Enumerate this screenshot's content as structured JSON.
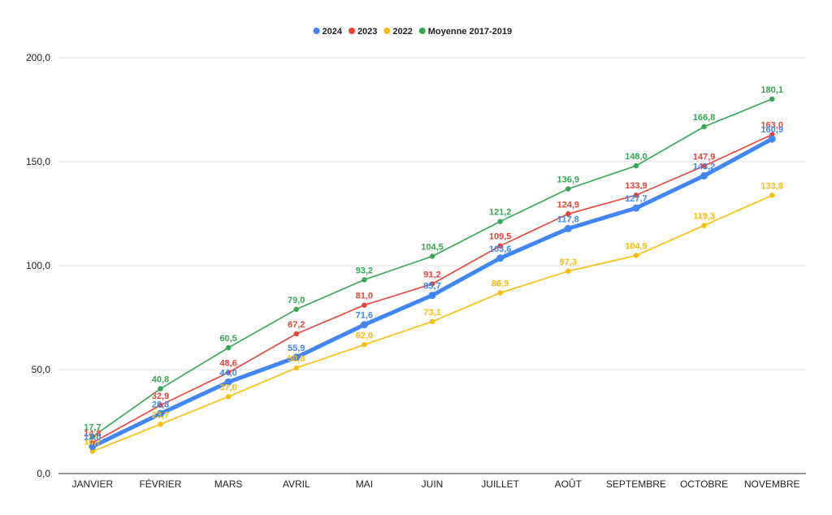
{
  "chart_data": {
    "type": "line",
    "title": "",
    "xlabel": "",
    "ylabel": "",
    "categories": [
      "JANVIER",
      "FÉVRIER",
      "MARS",
      "AVRIL",
      "MAI",
      "JUIN",
      "JUILLET",
      "AOÛT",
      "SEPTEMBRE",
      "OCTOBRE",
      "NOVEMBRE"
    ],
    "ylim": [
      0,
      200
    ],
    "yticks": [
      0,
      50,
      100,
      150,
      200
    ],
    "ytick_labels": [
      "0,0",
      "50,0",
      "100,0",
      "150,0",
      "200,0"
    ],
    "grid": true,
    "legend_position": "top-center",
    "series": [
      {
        "name": "Moyenne 2017-2019",
        "color": "#34a853",
        "values": [
          17.7,
          40.8,
          60.5,
          79.0,
          93.2,
          104.5,
          121.2,
          136.9,
          148.0,
          166.8,
          180.1
        ],
        "labels": [
          "17,7",
          "40,8",
          "60,5",
          "79,0",
          "93,2",
          "104,5",
          "121,2",
          "136,9",
          "148,0",
          "166,8",
          "180,1"
        ]
      },
      {
        "name": "2023",
        "color": "#ea4335",
        "values": [
          14.8,
          32.9,
          48.6,
          67.2,
          81.0,
          91.2,
          109.5,
          124.9,
          133.9,
          147.9,
          163.0
        ],
        "labels": [
          "14,8",
          "32,9",
          "48,6",
          "67,2",
          "81,0",
          "91,2",
          "109,5",
          "124,9",
          "133,9",
          "147,9",
          "163,0"
        ]
      },
      {
        "name": "2022",
        "color": "#fbbc04",
        "values": [
          10.7,
          23.7,
          37.0,
          50.8,
          62.0,
          73.1,
          86.9,
          97.3,
          104.9,
          119.3,
          133.8
        ],
        "labels": [
          "10,7",
          "23,7",
          "37,0",
          "50,8",
          "62,0",
          "73,1",
          "86,9",
          "97,3",
          "104,9",
          "119,3",
          "133,8"
        ]
      },
      {
        "name": "2024",
        "color": "#4285f4",
        "values": [
          13.0,
          28.8,
          44.0,
          55.9,
          71.6,
          85.7,
          103.6,
          117.8,
          127.7,
          143.2,
          160.9
        ],
        "labels": [
          "13,0",
          "28,8",
          "44,0",
          "55,9",
          "71,6",
          "85,7",
          "103,6",
          "117,8",
          "127,7",
          "143,2",
          "160,9"
        ]
      }
    ],
    "legend_order": [
      "2024",
      "2023",
      "2022",
      "Moyenne 2017-2019"
    ]
  }
}
